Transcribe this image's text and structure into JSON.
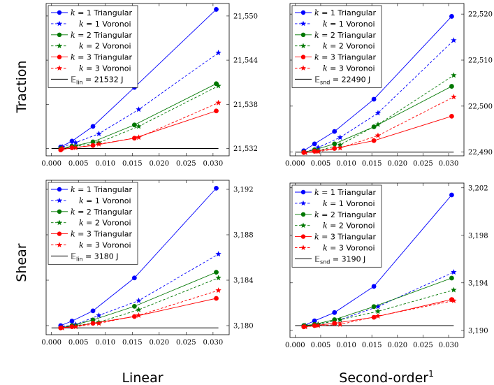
{
  "labels": {
    "row_top": "Traction",
    "row_bottom": "Shear",
    "col_left": "Linear",
    "col_right_base": "Second-order",
    "col_right_sup": "1"
  },
  "series_styles": [
    {
      "k": "1",
      "mesh": "Triangular",
      "color": "#0000ff",
      "dash": false,
      "marker": "circle"
    },
    {
      "k": "1",
      "mesh": "Voronoi",
      "color": "#0000ff",
      "dash": true,
      "marker": "star"
    },
    {
      "k": "2",
      "mesh": "Triangular",
      "color": "#007700",
      "dash": false,
      "marker": "circle"
    },
    {
      "k": "2",
      "mesh": "Voronoi",
      "color": "#007700",
      "dash": true,
      "marker": "star"
    },
    {
      "k": "3",
      "mesh": "Triangular",
      "color": "#ff0000",
      "dash": false,
      "marker": "circle"
    },
    {
      "k": "3",
      "mesh": "Voronoi",
      "color": "#ff0000",
      "dash": true,
      "marker": "star"
    }
  ],
  "chart_data": [
    {
      "type": "line",
      "title": "",
      "xlabel": "",
      "ylabel": "",
      "xlim": [
        -0.001,
        0.033
      ],
      "ylim": [
        21531.0,
        21551.7
      ],
      "xticks": [
        0.0,
        0.005,
        0.01,
        0.015,
        0.02,
        0.025,
        0.03
      ],
      "xtick_labels": [
        "0.000",
        "0.005",
        "0.010",
        "0.015",
        "0.020",
        "0.025",
        "0.030"
      ],
      "yticks": [
        21532,
        21538,
        21544,
        21550
      ],
      "ytick_labels": [
        "21,532",
        "21,538",
        "21,544",
        "21,550"
      ],
      "y_axis_side": "right",
      "legend_position": "top-left",
      "reference": {
        "label": "𝔼",
        "sub": "lin",
        "value_text": " = 21532 J",
        "value": 21532,
        "xrange": [
          0.0,
          0.031
        ]
      },
      "series": [
        {
          "name": "k = 1 Triangular",
          "x": [
            0.0017,
            0.0038,
            0.0077,
            0.0154,
            0.0306
          ],
          "y": [
            21532.2,
            21533.0,
            21535.0,
            21540.3,
            21550.9
          ]
        },
        {
          "name": "k = 1 Voronoi",
          "x": [
            0.002,
            0.0045,
            0.0088,
            0.0162,
            0.031
          ],
          "y": [
            21532.2,
            21532.8,
            21534.0,
            21537.3,
            21545.0
          ]
        },
        {
          "name": "k = 2 Triangular",
          "x": [
            0.0017,
            0.0038,
            0.0077,
            0.0154,
            0.0306
          ],
          "y": [
            21532.0,
            21532.3,
            21532.9,
            21535.2,
            21540.8
          ]
        },
        {
          "name": "k = 2 Voronoi",
          "x": [
            0.002,
            0.0045,
            0.0088,
            0.0162,
            0.031
          ],
          "y": [
            21532.0,
            21532.3,
            21532.8,
            21535.0,
            21540.5
          ]
        },
        {
          "name": "k = 3 Triangular",
          "x": [
            0.0017,
            0.0038,
            0.0077,
            0.0154,
            0.0306
          ],
          "y": [
            21531.8,
            21532.1,
            21532.4,
            21533.4,
            21537.1
          ]
        },
        {
          "name": "k = 3 Voronoi",
          "x": [
            0.002,
            0.0045,
            0.0088,
            0.0162,
            0.031
          ],
          "y": [
            21532.0,
            21532.1,
            21532.6,
            21533.5,
            21538.2
          ]
        }
      ]
    },
    {
      "type": "line",
      "title": "",
      "xlabel": "",
      "ylabel": "",
      "xlim": [
        -0.001,
        0.033
      ],
      "ylim": [
        22489.2,
        22522.3
      ],
      "xticks": [
        0.0,
        0.005,
        0.01,
        0.015,
        0.02,
        0.025,
        0.03
      ],
      "xtick_labels": [
        "0.000",
        "0.005",
        "0.010",
        "0.015",
        "0.020",
        "0.025",
        "0.030"
      ],
      "yticks": [
        22490,
        22500,
        22510,
        22520
      ],
      "ytick_labels": [
        "22,490",
        "22,500",
        "22,510",
        "22,520"
      ],
      "y_axis_side": "right",
      "legend_position": "top-left",
      "reference": {
        "label": "𝔼",
        "sub": "snd",
        "value_text": " = 22490 J",
        "value": 22490,
        "xrange": [
          0.0,
          0.031
        ]
      },
      "series": [
        {
          "name": "k = 1 Triangular",
          "x": [
            0.0017,
            0.0038,
            0.0077,
            0.0154,
            0.0306
          ],
          "y": [
            22490.3,
            22491.8,
            22494.5,
            22501.5,
            22519.5
          ]
        },
        {
          "name": "k = 1 Voronoi",
          "x": [
            0.002,
            0.0045,
            0.0088,
            0.0162,
            0.031
          ],
          "y": [
            22490.0,
            22491.0,
            22493.2,
            22498.5,
            22514.3
          ]
        },
        {
          "name": "k = 2 Triangular",
          "x": [
            0.0017,
            0.0038,
            0.0077,
            0.0154,
            0.0306
          ],
          "y": [
            22490.0,
            22490.5,
            22491.8,
            22495.5,
            22504.3
          ]
        },
        {
          "name": "k = 2 Voronoi",
          "x": [
            0.002,
            0.0045,
            0.0088,
            0.0162,
            0.031
          ],
          "y": [
            22489.9,
            22490.3,
            22491.6,
            22496.0,
            22506.7
          ]
        },
        {
          "name": "k = 3 Triangular",
          "x": [
            0.0017,
            0.0038,
            0.0077,
            0.0154,
            0.0306
          ],
          "y": [
            22489.9,
            22490.2,
            22490.8,
            22492.5,
            22497.8
          ]
        },
        {
          "name": "k = 3 Voronoi",
          "x": [
            0.002,
            0.0045,
            0.0088,
            0.0162,
            0.031
          ],
          "y": [
            22489.9,
            22490.1,
            22490.9,
            22493.6,
            22502.0
          ]
        }
      ]
    },
    {
      "type": "line",
      "title": "",
      "xlabel": "",
      "ylabel": "",
      "xlim": [
        -0.001,
        0.033
      ],
      "ylim": [
        3179.2,
        3192.8
      ],
      "xticks": [
        0.0,
        0.005,
        0.01,
        0.015,
        0.02,
        0.025,
        0.03
      ],
      "xtick_labels": [
        "0.000",
        "0.005",
        "0.010",
        "0.015",
        "0.020",
        "0.025",
        "0.030"
      ],
      "yticks": [
        3180,
        3184,
        3188,
        3192
      ],
      "ytick_labels": [
        "3,180",
        "3,184",
        "3,188",
        "3,192"
      ],
      "y_axis_side": "right",
      "legend_position": "top-left",
      "reference": {
        "label": "𝔼",
        "sub": "lin",
        "value_text": " = 3180 J",
        "value": 3179.8,
        "xrange": [
          0.0,
          0.031
        ]
      },
      "series": [
        {
          "name": "k = 1 Triangular",
          "x": [
            0.0017,
            0.0038,
            0.0077,
            0.0154,
            0.0306
          ],
          "y": [
            3180.0,
            3180.4,
            3181.3,
            3184.2,
            3192.1
          ]
        },
        {
          "name": "k = 1 Voronoi",
          "x": [
            0.002,
            0.0045,
            0.0088,
            0.0162,
            0.031
          ],
          "y": [
            3179.9,
            3180.1,
            3180.9,
            3182.2,
            3186.3
          ]
        },
        {
          "name": "k = 2 Triangular",
          "x": [
            0.0017,
            0.0038,
            0.0077,
            0.0154,
            0.0306
          ],
          "y": [
            3179.8,
            3180.0,
            3180.5,
            3181.7,
            3184.7
          ]
        },
        {
          "name": "k = 2 Voronoi",
          "x": [
            0.002,
            0.0045,
            0.0088,
            0.0162,
            0.031
          ],
          "y": [
            3179.8,
            3180.0,
            3180.3,
            3181.4,
            3184.2
          ]
        },
        {
          "name": "k = 3 Triangular",
          "x": [
            0.0017,
            0.0038,
            0.0077,
            0.0154,
            0.0306
          ],
          "y": [
            3179.8,
            3179.9,
            3180.2,
            3180.8,
            3182.4
          ]
        },
        {
          "name": "k = 3 Voronoi",
          "x": [
            0.002,
            0.0045,
            0.0088,
            0.0162,
            0.031
          ],
          "y": [
            3179.8,
            3179.9,
            3180.2,
            3180.9,
            3183.1
          ]
        }
      ]
    },
    {
      "type": "line",
      "title": "",
      "xlabel": "",
      "ylabel": "",
      "xlim": [
        -0.001,
        0.033
      ],
      "ylim": [
        3189.4,
        3202.4
      ],
      "xticks": [
        0.0,
        0.005,
        0.01,
        0.015,
        0.02,
        0.025,
        0.03
      ],
      "xtick_labels": [
        "0.000",
        "0.005",
        "0.010",
        "0.015",
        "0.020",
        "0.025",
        "0.030"
      ],
      "yticks": [
        3190,
        3194,
        3198,
        3202
      ],
      "ytick_labels": [
        "3,190",
        "3,194",
        "3,198",
        "3,202"
      ],
      "y_axis_side": "right",
      "legend_position": "top-left",
      "reference": {
        "label": "𝔼",
        "sub": "snd",
        "value_text": " = 3190 J",
        "value": 3190.4,
        "xrange": [
          0.0,
          0.031
        ]
      },
      "series": [
        {
          "name": "k = 1 Triangular",
          "x": [
            0.0017,
            0.0038,
            0.0077,
            0.0154,
            0.0306
          ],
          "y": [
            3190.4,
            3190.8,
            3191.5,
            3193.7,
            3201.4
          ]
        },
        {
          "name": "k = 1 Voronoi",
          "x": [
            0.002,
            0.0045,
            0.0088,
            0.0162,
            0.031
          ],
          "y": [
            3190.4,
            3190.5,
            3190.9,
            3192.0,
            3194.9
          ]
        },
        {
          "name": "k = 2 Triangular",
          "x": [
            0.0017,
            0.0038,
            0.0077,
            0.0154,
            0.0306
          ],
          "y": [
            3190.4,
            3190.5,
            3190.9,
            3192.0,
            3194.4
          ]
        },
        {
          "name": "k = 2 Voronoi",
          "x": [
            0.002,
            0.0045,
            0.0088,
            0.0162,
            0.031
          ],
          "y": [
            3190.4,
            3190.5,
            3190.9,
            3191.6,
            3193.4
          ]
        },
        {
          "name": "k = 3 Triangular",
          "x": [
            0.0017,
            0.0038,
            0.0077,
            0.0154,
            0.0306
          ],
          "y": [
            3190.3,
            3190.4,
            3190.6,
            3191.1,
            3192.6
          ]
        },
        {
          "name": "k = 3 Voronoi",
          "x": [
            0.002,
            0.0045,
            0.0088,
            0.0162,
            0.031
          ],
          "y": [
            3190.3,
            3190.4,
            3190.5,
            3191.2,
            3192.5
          ]
        }
      ]
    }
  ]
}
